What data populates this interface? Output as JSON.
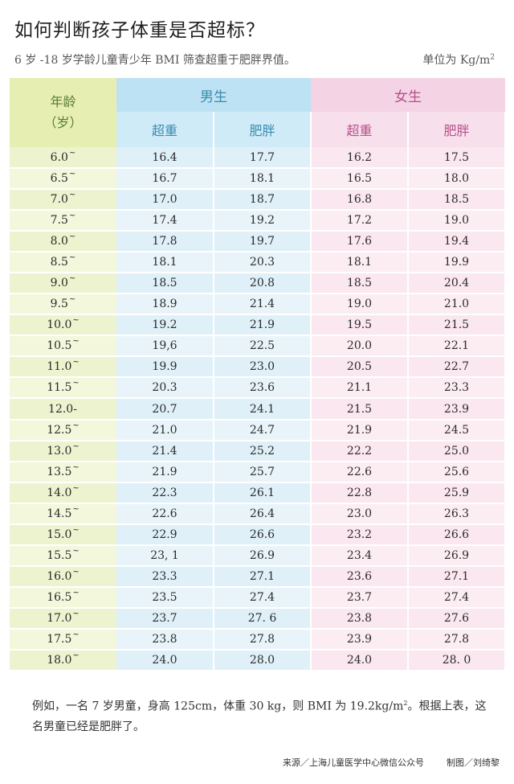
{
  "title": "如何判断孩子体重是否超标？",
  "subtitle": "6 岁 -18 岁学龄儿童青少年 BMI 筛查超重于肥胖界值。",
  "unit": {
    "text": "单位为 Kg/m",
    "sup": "2"
  },
  "table": {
    "age_header_line1": "年龄",
    "age_header_line2": "（岁）",
    "boy_header": "男生",
    "girl_header": "女生",
    "overweight_label": "超重",
    "obese_label": "肥胖",
    "rows": [
      {
        "age": "6.0",
        "suffix": "~",
        "boy_over": "16.4",
        "boy_obese": "17.7",
        "girl_over": "16.2",
        "girl_obese": "17.5"
      },
      {
        "age": "6.5",
        "suffix": "~",
        "boy_over": "16.7",
        "boy_obese": "18.1",
        "girl_over": "16.5",
        "girl_obese": "18.0"
      },
      {
        "age": "7.0",
        "suffix": "~",
        "boy_over": "17.0",
        "boy_obese": "18.7",
        "girl_over": "16.8",
        "girl_obese": "18.5"
      },
      {
        "age": "7.5",
        "suffix": "~",
        "boy_over": "17.4",
        "boy_obese": "19.2",
        "girl_over": "17.2",
        "girl_obese": "19.0"
      },
      {
        "age": "8.0",
        "suffix": "~",
        "boy_over": "17.8",
        "boy_obese": "19.7",
        "girl_over": "17.6",
        "girl_obese": "19.4"
      },
      {
        "age": "8.5",
        "suffix": "~",
        "boy_over": "18.1",
        "boy_obese": "20.3",
        "girl_over": "18.1",
        "girl_obese": "19.9"
      },
      {
        "age": "9.0",
        "suffix": "~",
        "boy_over": "18.5",
        "boy_obese": "20.8",
        "girl_over": "18.5",
        "girl_obese": "20.4"
      },
      {
        "age": "9.5",
        "suffix": "~",
        "boy_over": "18.9",
        "boy_obese": "21.4",
        "girl_over": "19.0",
        "girl_obese": "21.0"
      },
      {
        "age": "10.0",
        "suffix": "~",
        "boy_over": "19.2",
        "boy_obese": "21.9",
        "girl_over": "19.5",
        "girl_obese": "21.5"
      },
      {
        "age": "10.5",
        "suffix": "~",
        "boy_over": "19,6",
        "boy_obese": "22.5",
        "girl_over": "20.0",
        "girl_obese": "22.1"
      },
      {
        "age": "11.0",
        "suffix": "~",
        "boy_over": "19.9",
        "boy_obese": "23.0",
        "girl_over": "20.5",
        "girl_obese": "22.7"
      },
      {
        "age": "11.5",
        "suffix": "~",
        "boy_over": "20.3",
        "boy_obese": "23.6",
        "girl_over": "21.1",
        "girl_obese": "23.3"
      },
      {
        "age": "12.0-",
        "suffix": "",
        "boy_over": "20.7",
        "boy_obese": "24.1",
        "girl_over": "21.5",
        "girl_obese": "23.9"
      },
      {
        "age": "12.5",
        "suffix": "~",
        "boy_over": "21.0",
        "boy_obese": "24.7",
        "girl_over": "21.9",
        "girl_obese": "24.5"
      },
      {
        "age": "13.0",
        "suffix": "~",
        "boy_over": "21.4",
        "boy_obese": "25.2",
        "girl_over": "22.2",
        "girl_obese": "25.0"
      },
      {
        "age": "13.5",
        "suffix": "~",
        "boy_over": "21.9",
        "boy_obese": "25.7",
        "girl_over": "22.6",
        "girl_obese": "25.6"
      },
      {
        "age": "14.0",
        "suffix": "~",
        "boy_over": "22.3",
        "boy_obese": "26.1",
        "girl_over": "22.8",
        "girl_obese": "25.9"
      },
      {
        "age": "14.5",
        "suffix": "~",
        "boy_over": "22.6",
        "boy_obese": "26.4",
        "girl_over": "23.0",
        "girl_obese": "26.3"
      },
      {
        "age": "15.0",
        "suffix": "~",
        "boy_over": "22.9",
        "boy_obese": "26.6",
        "girl_over": "23.2",
        "girl_obese": "26.6"
      },
      {
        "age": "15.5",
        "suffix": "~",
        "boy_over": "23, 1",
        "boy_obese": "26.9",
        "girl_over": "23.4",
        "girl_obese": "26.9"
      },
      {
        "age": "16.0",
        "suffix": "~",
        "boy_over": "23.3",
        "boy_obese": "27.1",
        "girl_over": "23.6",
        "girl_obese": "27.1"
      },
      {
        "age": "16.5",
        "suffix": "~",
        "boy_over": "23.5",
        "boy_obese": "27.4",
        "girl_over": "23.7",
        "girl_obese": "27.4"
      },
      {
        "age": "17.0",
        "suffix": "~",
        "boy_over": "23.7",
        "boy_obese": "27. 6",
        "girl_over": "23.8",
        "girl_obese": "27.6"
      },
      {
        "age": "17.5",
        "suffix": "~",
        "boy_over": "23.8",
        "boy_obese": "27.8",
        "girl_over": "23.9",
        "girl_obese": "27.8"
      },
      {
        "age": "18.0",
        "suffix": "~",
        "boy_over": "24.0",
        "boy_obese": "28.0",
        "girl_over": "24.0",
        "girl_obese": "28. 0"
      }
    ]
  },
  "example": {
    "part1": "例如，一名 7 岁男童，身高 125cm，体重 30 kg，则 BMI 为 19.2kg/m",
    "sup": "2",
    "part2": "。根据上表，这名男童已经是肥胖了。"
  },
  "footer": {
    "source": "来源／上海儿童医学中心微信公众号",
    "credit": "制图／刘绮黎"
  }
}
